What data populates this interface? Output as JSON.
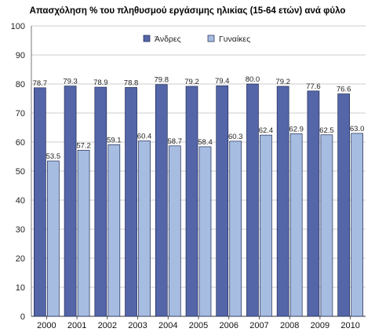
{
  "chart_data": {
    "type": "bar",
    "title": "Απασχόληση % του πληθυσμού εργάσιμης ηλικίας (15-64 ετών) ανά φύλο",
    "xlabel": "",
    "ylabel": "",
    "ylim": [
      0,
      100
    ],
    "yticks": [
      0,
      10,
      20,
      30,
      40,
      50,
      60,
      70,
      80,
      90,
      100
    ],
    "grid": true,
    "legend_position": "top-center",
    "categories": [
      "2000",
      "2001",
      "2002",
      "2003",
      "2004",
      "2005",
      "2006",
      "2007",
      "2008",
      "2009",
      "2010"
    ],
    "series": [
      {
        "name": "Άνδρες",
        "color": "#5466a8",
        "values": [
          78.7,
          79.3,
          78.9,
          78.8,
          79.8,
          79.2,
          79.4,
          80.0,
          79.2,
          77.6,
          76.6
        ],
        "labels": [
          "78.7",
          "79.3",
          "78.9",
          "78.8",
          "79.8",
          "79.2",
          "79.4",
          "80.0",
          "79.2",
          "77.6",
          "76.6"
        ]
      },
      {
        "name": "Γυναίκες",
        "color": "#a6bce0",
        "values": [
          53.5,
          57.2,
          59.1,
          60.4,
          58.7,
          58.4,
          60.3,
          62.4,
          62.9,
          62.5,
          63.0
        ],
        "labels": [
          "53.5",
          "57.2",
          "59.1",
          "60.4",
          "58.7",
          "58.4",
          "60.3",
          "62.4",
          "62.9",
          "62.5",
          "63.0"
        ]
      }
    ]
  }
}
